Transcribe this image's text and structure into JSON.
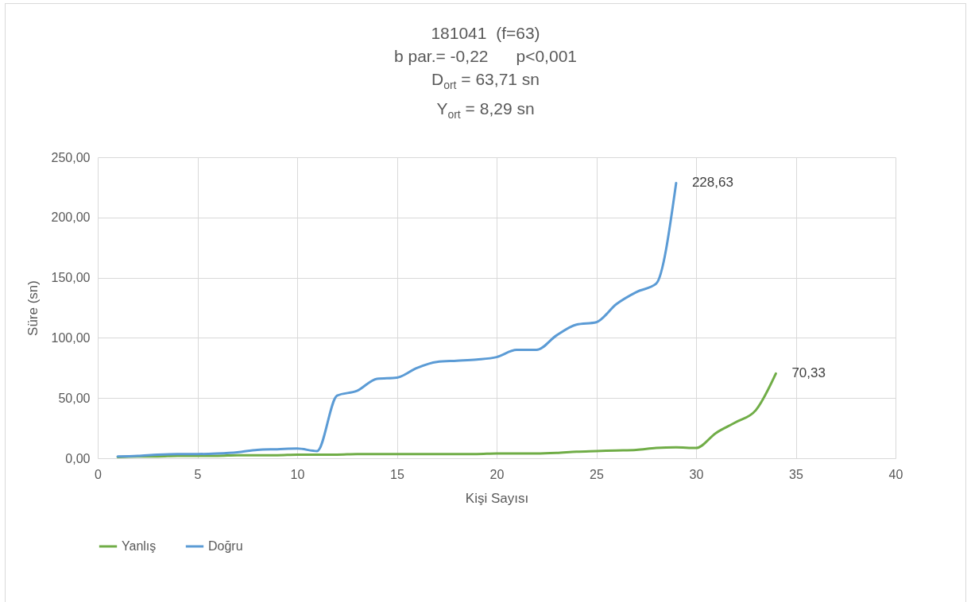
{
  "chart_data": {
    "type": "line",
    "title": "181041  (f=63)",
    "subtitle": "b par.= -0,22      p<0,001",
    "annotations": [
      "D$_{ort}$ = 63,71 sn",
      "Y$_{ort}$ = 8,29 sn"
    ],
    "xlabel": "Kişi Sayısı",
    "ylabel": "Süre (sn)",
    "series": [
      {
        "name": "Yanlış",
        "color": "#70ad47",
        "x": [
          1,
          2,
          3,
          4,
          5,
          6,
          7,
          8,
          9,
          10,
          11,
          12,
          13,
          14,
          15,
          16,
          17,
          18,
          19,
          20,
          21,
          22,
          23,
          24,
          25,
          26,
          27,
          28,
          29,
          30,
          31,
          32,
          33,
          34
        ],
        "values": [
          1,
          1.5,
          1.5,
          2,
          2,
          2,
          2.5,
          2.5,
          2.5,
          3,
          3,
          3,
          3.5,
          3.5,
          3.5,
          3.5,
          3.5,
          3.5,
          3.5,
          4,
          4,
          4,
          4.5,
          5.5,
          6,
          6.5,
          7,
          8.5,
          9,
          8.5,
          21,
          30,
          40,
          70.33
        ],
        "value_labels": [
          null,
          null,
          null,
          null,
          null,
          null,
          null,
          null,
          null,
          null,
          null,
          null,
          null,
          null,
          null,
          null,
          null,
          null,
          null,
          null,
          null,
          null,
          null,
          null,
          null,
          null,
          null,
          null,
          null,
          null,
          null,
          null,
          null,
          "70,33"
        ]
      },
      {
        "name": "Doğru",
        "color": "#5b9bd5",
        "x": [
          1,
          2,
          3,
          4,
          5,
          6,
          7,
          8,
          9,
          10,
          11,
          12,
          13,
          14,
          15,
          16,
          17,
          18,
          19,
          20,
          21,
          22,
          23,
          24,
          25,
          26,
          27,
          28,
          29
        ],
        "values": [
          1.5,
          2,
          3,
          3.5,
          3.5,
          4,
          5,
          7,
          7.5,
          8,
          6,
          52,
          56,
          66,
          67,
          75,
          80,
          81,
          82,
          84,
          90,
          90,
          102,
          111,
          113,
          128,
          138,
          145,
          228.63
        ],
        "value_labels": [
          null,
          null,
          null,
          null,
          null,
          null,
          null,
          null,
          null,
          null,
          null,
          null,
          null,
          null,
          null,
          null,
          null,
          null,
          null,
          null,
          null,
          null,
          null,
          null,
          null,
          null,
          null,
          null,
          "228,63"
        ]
      }
    ],
    "xlim": [
      0,
      40
    ],
    "xticks": [
      0,
      5,
      10,
      15,
      20,
      25,
      30,
      35,
      40
    ],
    "ylim": [
      0,
      250
    ],
    "yticks": [
      {
        "value": 0,
        "label": "0,00"
      },
      {
        "value": 50,
        "label": "50,00"
      },
      {
        "value": 100,
        "label": "100,00"
      },
      {
        "value": 150,
        "label": "150,00"
      },
      {
        "value": 200,
        "label": "200,00"
      },
      {
        "value": 250,
        "label": "250,00"
      }
    ],
    "grid": true,
    "legend": "bottom",
    "line_style": "solid",
    "marker": "none"
  }
}
